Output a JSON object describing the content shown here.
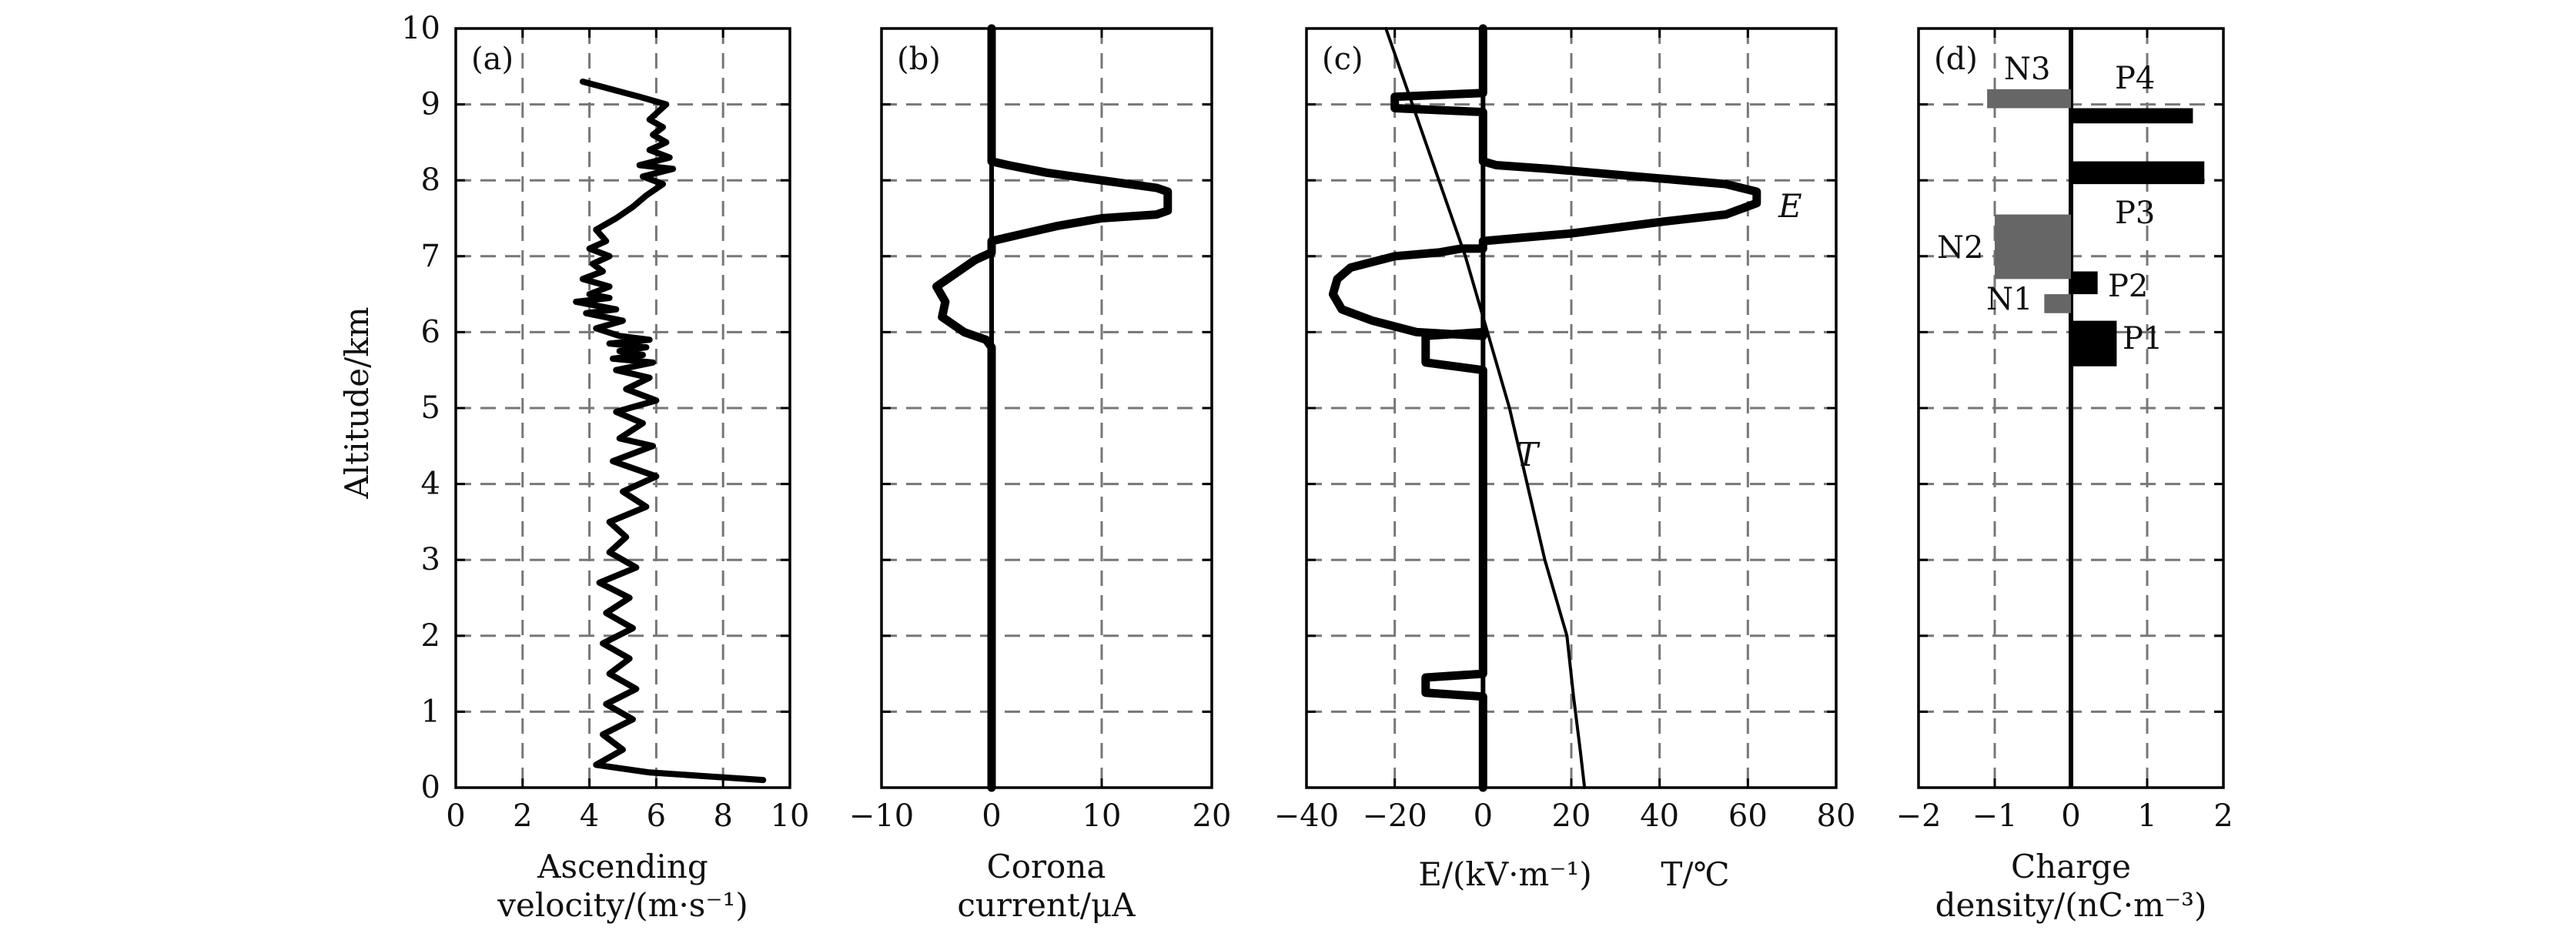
{
  "figure": {
    "ylabel": "Altitude/km",
    "y_ticks": [
      "0",
      "1",
      "2",
      "3",
      "4",
      "5",
      "6",
      "7",
      "8",
      "9",
      "10"
    ]
  },
  "chart_data": [
    {
      "panel": "(a)",
      "type": "line",
      "xlabel_lines": [
        "Ascending",
        "velocity/(m·s⁻¹)"
      ],
      "xlim": [
        0,
        10
      ],
      "ylim": [
        0,
        10
      ],
      "x_ticks": [
        "0",
        "2",
        "4",
        "6",
        "8",
        "10"
      ],
      "grid": true,
      "series": [
        {
          "color": "#000000",
          "x": [
            9.2,
            7.5,
            5.8,
            4.2,
            5.0,
            4.4,
            5.3,
            4.5,
            5.4,
            4.6,
            5.2,
            4.4,
            5.3,
            4.5,
            5.2,
            4.3,
            5.4,
            4.6,
            5.1,
            4.6,
            5.7,
            5.0,
            6.0,
            4.7,
            5.9,
            4.9,
            5.6,
            4.8,
            6.0,
            5.1,
            5.8,
            4.8,
            5.9,
            4.7,
            5.6,
            4.9,
            5.7,
            4.6,
            5.8,
            4.9,
            4.2,
            5.0,
            3.9,
            4.8,
            3.6,
            4.6,
            4.0,
            4.6,
            3.8,
            4.4,
            4.1,
            4.6,
            4.0,
            4.5,
            4.2,
            4.8,
            5.3,
            5.7,
            6.2,
            5.6,
            6.5,
            5.5,
            6.4,
            5.8,
            6.3,
            5.9,
            6.2,
            5.8,
            6.3,
            5.5,
            3.8
          ],
          "y": [
            0.1,
            0.15,
            0.2,
            0.3,
            0.5,
            0.7,
            0.9,
            1.1,
            1.3,
            1.5,
            1.7,
            1.9,
            2.1,
            2.3,
            2.5,
            2.7,
            2.9,
            3.1,
            3.3,
            3.5,
            3.7,
            3.9,
            4.1,
            4.3,
            4.5,
            4.6,
            4.8,
            4.95,
            5.1,
            5.25,
            5.4,
            5.5,
            5.6,
            5.65,
            5.7,
            5.75,
            5.8,
            5.85,
            5.9,
            5.95,
            6.05,
            6.15,
            6.25,
            6.3,
            6.4,
            6.45,
            6.5,
            6.6,
            6.7,
            6.8,
            6.9,
            7.0,
            7.1,
            7.2,
            7.35,
            7.5,
            7.65,
            7.8,
            7.95,
            8.05,
            8.15,
            8.2,
            8.3,
            8.4,
            8.5,
            8.6,
            8.7,
            8.8,
            9.0,
            9.1,
            9.3
          ]
        }
      ]
    },
    {
      "panel": "(b)",
      "type": "line",
      "xlabel_lines": [
        "Corona",
        "current/μA"
      ],
      "xlim": [
        -10,
        20
      ],
      "ylim": [
        0,
        10
      ],
      "x_ticks": [
        "−10",
        "0",
        "10",
        "20"
      ],
      "grid": true,
      "series": [
        {
          "color": "#000000",
          "x": [
            0,
            0,
            0,
            0,
            -0.5,
            -2.5,
            -4.5,
            -4.2,
            -5.0,
            -3.0,
            -1.5,
            0,
            0,
            1.5,
            3.0,
            6.0,
            10.0,
            15.0,
            16.0,
            16.0,
            15.0,
            10.0,
            5.0,
            1.5,
            0,
            0
          ],
          "y": [
            0.0,
            1.5,
            5.0,
            5.8,
            5.9,
            6.0,
            6.2,
            6.4,
            6.6,
            6.8,
            6.95,
            7.05,
            7.2,
            7.25,
            7.3,
            7.4,
            7.5,
            7.55,
            7.6,
            7.85,
            7.9,
            8.0,
            8.1,
            8.2,
            8.25,
            10.0
          ]
        }
      ]
    },
    {
      "panel": "(c)",
      "type": "line",
      "xlabel_lines": [
        "E/(kV·m⁻¹)",
        "T/℃"
      ],
      "xlim": [
        -40,
        80
      ],
      "ylim": [
        0,
        10
      ],
      "x_ticks": [
        "−40",
        "−20",
        "0",
        "20",
        "40",
        "60",
        "80"
      ],
      "grid": true,
      "annotations": [
        "E",
        "T"
      ],
      "series": [
        {
          "name": "E",
          "color": "#000000",
          "x": [
            0,
            0,
            -13,
            -13,
            0,
            0,
            -13,
            -13,
            0,
            0,
            -15,
            -25,
            -32,
            -34,
            -33,
            -30,
            -20,
            -10,
            -5,
            0,
            0,
            10,
            20,
            40,
            55,
            62,
            62,
            55,
            35,
            15,
            3,
            0,
            0,
            -20,
            -20,
            0,
            0
          ],
          "y": [
            0.0,
            1.2,
            1.25,
            1.45,
            1.5,
            5.5,
            5.6,
            5.95,
            6.0,
            5.95,
            6.0,
            6.15,
            6.3,
            6.5,
            6.7,
            6.85,
            7.0,
            7.05,
            7.1,
            7.1,
            7.2,
            7.25,
            7.3,
            7.45,
            7.55,
            7.7,
            7.85,
            7.95,
            8.05,
            8.15,
            8.2,
            8.25,
            8.9,
            8.95,
            9.1,
            9.15,
            10.0
          ]
        },
        {
          "name": "T",
          "color": "#000000",
          "x": [
            23,
            22,
            20.5,
            19,
            14,
            10,
            6,
            1,
            -4,
            -10,
            -16,
            -22
          ],
          "y": [
            0.0,
            0.5,
            1.2,
            2.0,
            3.0,
            4.0,
            5.0,
            6.0,
            7.0,
            8.0,
            9.0,
            10.0
          ]
        }
      ]
    },
    {
      "panel": "(d)",
      "type": "bar",
      "orientation": "horizontal",
      "xlabel_lines": [
        "Charge",
        "density/(nC·m⁻³)"
      ],
      "xlim": [
        -2,
        2
      ],
      "ylim": [
        0,
        10
      ],
      "x_ticks": [
        "−2",
        "−1",
        "0",
        "1",
        "2"
      ],
      "grid": true,
      "bars": [
        {
          "label": "P1",
          "value": 0.6,
          "y_low": 5.55,
          "y_high": 6.15,
          "color": "#000000"
        },
        {
          "label": "N1",
          "value": -0.35,
          "y_low": 6.25,
          "y_high": 6.5,
          "color": "#666666"
        },
        {
          "label": "P2",
          "value": 0.35,
          "y_low": 6.5,
          "y_high": 6.8,
          "color": "#000000"
        },
        {
          "label": "N2",
          "value": -1.0,
          "y_low": 6.7,
          "y_high": 7.55,
          "color": "#666666"
        },
        {
          "label": "P3",
          "value": 1.75,
          "y_low": 7.95,
          "y_high": 8.25,
          "color": "#000000"
        },
        {
          "label": "P4",
          "value": 1.6,
          "y_low": 8.75,
          "y_high": 8.95,
          "color": "#000000"
        },
        {
          "label": "N3",
          "value": -1.1,
          "y_low": 8.95,
          "y_high": 9.2,
          "color": "#666666"
        }
      ]
    }
  ]
}
